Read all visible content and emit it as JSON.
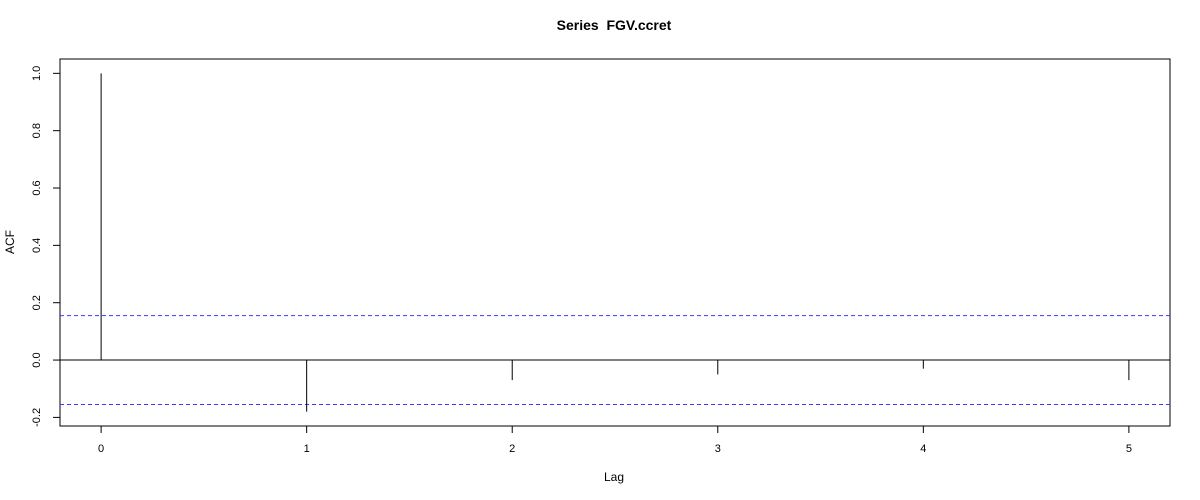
{
  "chart_data": {
    "type": "bar",
    "title": "Series  FGV.ccret",
    "xlabel": "Lag",
    "ylabel": "ACF",
    "x": [
      0,
      1,
      2,
      3,
      4,
      5
    ],
    "values": [
      1.0,
      -0.18,
      -0.07,
      -0.05,
      -0.03,
      -0.07
    ],
    "xticks": [
      "0",
      "1",
      "2",
      "3",
      "4",
      "5"
    ],
    "yticks": [
      "-0.2",
      "0.0",
      "0.2",
      "0.4",
      "0.6",
      "0.8",
      "1.0"
    ],
    "xlim": [
      -0.2,
      5.2
    ],
    "ylim": [
      -0.23,
      1.05
    ],
    "confidence_bounds": [
      0.155,
      -0.155
    ],
    "grid": false,
    "colors": {
      "bars": "#000000",
      "bounds": "#3b3bff",
      "zero_line": "#000000"
    }
  }
}
